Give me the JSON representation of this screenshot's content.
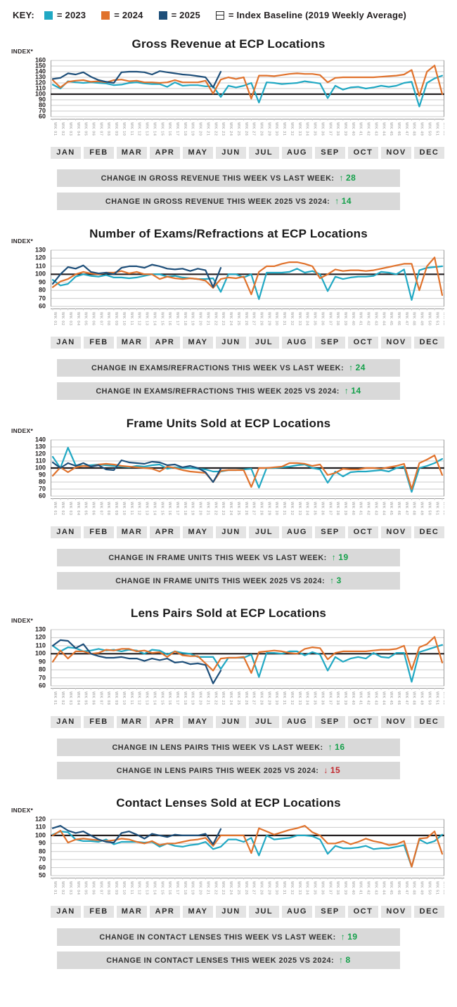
{
  "key": {
    "label": "KEY:",
    "items": [
      {
        "label": "= 2023",
        "color": "#20a8c3",
        "swatch": "square"
      },
      {
        "label": "= 2024",
        "color": "#e0722c",
        "swatch": "square"
      },
      {
        "label": "= 2025",
        "color": "#1d4e79",
        "swatch": "square"
      },
      {
        "label": "= Index Baseline (2019 Weekly Average)",
        "color": "#ffffff",
        "swatch": "baseline-box"
      }
    ]
  },
  "index_axis_label": "INDEX*",
  "months": [
    "JAN",
    "FEB",
    "MAR",
    "APR",
    "MAY",
    "JUN",
    "JUL",
    "AUG",
    "SEP",
    "OCT",
    "NOV",
    "DEC"
  ],
  "weeks": [
    "WK 01",
    "WK 02",
    "WK 03",
    "WK 04",
    "WK 05",
    "WK 06",
    "WK 07",
    "WK 08",
    "WK 09",
    "WK 10",
    "WK 11",
    "WK 12",
    "WK 13",
    "WK 14",
    "WK 15",
    "WK 16",
    "WK 17",
    "WK 18",
    "WK 19",
    "WK 20",
    "WK 21",
    "WK 22",
    "WK 23",
    "WK 24",
    "WK 25",
    "WK 26",
    "WK 27",
    "WK 28",
    "WK 29",
    "WK 30",
    "WK 31",
    "WK 32",
    "WK 33",
    "WK 34",
    "WK 35",
    "WK 36",
    "WK 37",
    "WK 38",
    "WK 39",
    "WK 40",
    "WK 41",
    "WK 42",
    "WK 43",
    "WK 44",
    "WK 45",
    "WK 46",
    "WK 47",
    "WK 48",
    "WK 49",
    "WK 50",
    "WK 51",
    "WK 52"
  ],
  "colors": {
    "grid": "#cbcbcb",
    "axis": "#9a9a9a",
    "baseline": "#231f20",
    "week_label": "#b3b3b3",
    "up": "#14a04a",
    "down": "#c1272d"
  },
  "chart_data": [
    {
      "type": "line",
      "title": "Gross Revenue at ECP Locations",
      "ylabel": "INDEX*",
      "ylim": [
        60,
        160
      ],
      "ytick_step": 10,
      "baseline": 100,
      "x_weeks": 52,
      "legend_position": "top",
      "grid": true,
      "series": [
        {
          "name": "2023",
          "color": "#20a8c3",
          "values": [
            117,
            110,
            123,
            121,
            120,
            121,
            120,
            119,
            116,
            117,
            120,
            121,
            119,
            118,
            118,
            113,
            121,
            115,
            116,
            116,
            114,
            114,
            95,
            115,
            112,
            115,
            120,
            85,
            121,
            120,
            118,
            119,
            120,
            123,
            121,
            119,
            93,
            115,
            108,
            112,
            113,
            110,
            112,
            115,
            113,
            115,
            120,
            122,
            78,
            120,
            128,
            133
          ]
        },
        {
          "name": "2024",
          "color": "#e0722c",
          "values": [
            125,
            112,
            122,
            124,
            125,
            122,
            123,
            121,
            125,
            126,
            123,
            124,
            121,
            121,
            120,
            121,
            125,
            121,
            121,
            121,
            124,
            101,
            126,
            130,
            127,
            130,
            92,
            133,
            133,
            132,
            134,
            136,
            137,
            136,
            136,
            134,
            121,
            129,
            130,
            130,
            130,
            130,
            130,
            131,
            132,
            133,
            135,
            143,
            97,
            140,
            151,
            100
          ]
        },
        {
          "name": "2025",
          "color": "#1d4e79",
          "values": [
            127,
            129,
            137,
            135,
            139,
            131,
            125,
            122,
            120,
            139,
            140,
            140,
            139,
            135,
            141,
            139,
            137,
            135,
            134,
            132,
            130,
            112,
            140
          ]
        }
      ],
      "stats": [
        {
          "label": "CHANGE IN GROSS REVENUE THIS WEEK VS LAST WEEK:",
          "direction": "up",
          "value": "28"
        },
        {
          "label": "CHANGE IN GROSS REVENUE THIS WEEK 2025 VS 2024:",
          "direction": "up",
          "value": "14"
        }
      ]
    },
    {
      "type": "line",
      "title": "Number of Exams/Refractions at ECP Locations",
      "ylabel": "INDEX*",
      "ylim": [
        60,
        130
      ],
      "ytick_step": 10,
      "baseline": 100,
      "x_weeks": 52,
      "legend_position": "top",
      "grid": true,
      "series": [
        {
          "name": "2023",
          "color": "#20a8c3",
          "values": [
            93,
            86,
            88,
            97,
            100,
            98,
            97,
            99,
            96,
            96,
            95,
            96,
            98,
            100,
            100,
            97,
            98,
            96,
            95,
            94,
            94,
            95,
            78,
            100,
            100,
            96,
            100,
            69,
            102,
            102,
            102,
            103,
            107,
            102,
            104,
            100,
            79,
            97,
            94,
            96,
            97,
            97,
            98,
            103,
            102,
            100,
            106,
            68,
            105,
            108,
            109,
            110
          ]
        },
        {
          "name": "2024",
          "color": "#e0722c",
          "values": [
            84,
            91,
            94,
            100,
            103,
            101,
            100,
            102,
            102,
            104,
            101,
            103,
            100,
            100,
            94,
            97,
            95,
            94,
            95,
            94,
            92,
            83,
            94,
            96,
            95,
            97,
            75,
            103,
            110,
            110,
            113,
            115,
            115,
            113,
            110,
            95,
            100,
            106,
            104,
            105,
            105,
            104,
            105,
            107,
            109,
            111,
            113,
            113,
            80,
            110,
            121,
            74
          ]
        },
        {
          "name": "2025",
          "color": "#1d4e79",
          "values": [
            88,
            100,
            109,
            107,
            111,
            103,
            101,
            102,
            100,
            108,
            110,
            110,
            108,
            112,
            110,
            107,
            106,
            107,
            104,
            107,
            105,
            84,
            108
          ]
        }
      ],
      "stats": [
        {
          "label": "CHANGE IN EXAMS/REFRACTIONS THIS WEEK VS LAST WEEK:",
          "direction": "up",
          "value": "24"
        },
        {
          "label": "CHANGE IN EXAMS/REFRACTIONS THIS WEEK 2025 VS 2024:",
          "direction": "up",
          "value": "14"
        }
      ]
    },
    {
      "type": "line",
      "title": "Frame Units Sold at ECP Locations",
      "ylabel": "INDEX*",
      "ylim": [
        60,
        140
      ],
      "ytick_step": 10,
      "baseline": 100,
      "x_weeks": 52,
      "legend_position": "top",
      "grid": true,
      "series": [
        {
          "name": "2023",
          "color": "#20a8c3",
          "values": [
            116,
            100,
            129,
            104,
            103,
            104,
            105,
            104,
            103,
            102,
            101,
            103,
            102,
            104,
            105,
            99,
            101,
            100,
            100,
            99,
            98,
            95,
            95,
            97,
            97,
            98,
            99,
            72,
            100,
            100,
            101,
            102,
            104,
            105,
            100,
            98,
            79,
            95,
            88,
            94,
            95,
            95,
            96,
            97,
            95,
            100,
            102,
            66,
            100,
            103,
            107,
            113
          ]
        },
        {
          "name": "2024",
          "color": "#e0722c",
          "values": [
            89,
            101,
            94,
            101,
            103,
            102,
            105,
            106,
            105,
            103,
            102,
            101,
            100,
            99,
            95,
            102,
            100,
            97,
            95,
            94,
            93,
            80,
            96,
            97,
            97,
            97,
            73,
            100,
            100,
            101,
            102,
            107,
            107,
            106,
            103,
            105,
            90,
            93,
            99,
            98,
            98,
            100,
            100,
            99,
            101,
            103,
            106,
            70,
            107,
            112,
            118,
            90
          ]
        },
        {
          "name": "2025",
          "color": "#1d4e79",
          "values": [
            108,
            100,
            107,
            103,
            107,
            102,
            104,
            98,
            97,
            111,
            108,
            107,
            106,
            109,
            108,
            104,
            105,
            101,
            103,
            100,
            94,
            80,
            99
          ]
        }
      ],
      "stats": [
        {
          "label": "CHANGE IN FRAME UNITS THIS WEEK VS LAST WEEK:",
          "direction": "up",
          "value": "19"
        },
        {
          "label": "CHANGE IN FRAME UNITS THIS WEEK 2025 VS 2024:",
          "direction": "up",
          "value": "3"
        }
      ]
    },
    {
      "type": "line",
      "title": "Lens Pairs Sold at ECP Locations",
      "ylabel": "INDEX*",
      "ylim": [
        60,
        130
      ],
      "ytick_step": 10,
      "baseline": 100,
      "x_weeks": 52,
      "legend_position": "top",
      "grid": true,
      "series": [
        {
          "name": "2023",
          "color": "#20a8c3",
          "values": [
            110,
            103,
            108,
            107,
            103,
            104,
            106,
            104,
            105,
            103,
            105,
            104,
            100,
            105,
            104,
            99,
            103,
            101,
            100,
            96,
            96,
            96,
            81,
            95,
            95,
            95,
            99,
            71,
            101,
            101,
            100,
            103,
            103,
            98,
            102,
            99,
            79,
            96,
            90,
            94,
            96,
            94,
            101,
            96,
            95,
            101,
            101,
            65,
            102,
            105,
            108,
            111
          ]
        },
        {
          "name": "2024",
          "color": "#e0722c",
          "values": [
            90,
            104,
            94,
            103,
            103,
            100,
            101,
            105,
            104,
            106,
            106,
            103,
            104,
            101,
            102,
            96,
            103,
            98,
            97,
            97,
            88,
            79,
            94,
            95,
            95,
            96,
            76,
            102,
            103,
            104,
            103,
            101,
            100,
            106,
            108,
            107,
            93,
            101,
            103,
            103,
            103,
            103,
            104,
            105,
            105,
            106,
            110,
            80,
            108,
            112,
            121,
            89
          ]
        },
        {
          "name": "2025",
          "color": "#1d4e79",
          "values": [
            110,
            117,
            116,
            107,
            112,
            100,
            97,
            95,
            95,
            96,
            94,
            94,
            91,
            94,
            92,
            94,
            89,
            90,
            87,
            88,
            86,
            63,
            79
          ]
        }
      ],
      "stats": [
        {
          "label": "CHANGE IN LENS PAIRS THIS WEEK VS LAST WEEK:",
          "direction": "up",
          "value": "16"
        },
        {
          "label": "CHANGE IN LENS PAIRS THIS WEEK 2025 VS 2024:",
          "direction": "down",
          "value": "15"
        }
      ]
    },
    {
      "type": "line",
      "title": "Contact Lenses Sold at ECP Locations",
      "ylabel": "INDEX*",
      "ylim": [
        50,
        120
      ],
      "ytick_step": 10,
      "baseline": 100,
      "x_weeks": 52,
      "legend_position": "top",
      "grid": true,
      "series": [
        {
          "name": "2023",
          "color": "#20a8c3",
          "values": [
            101,
            105,
            104,
            95,
            93,
            93,
            92,
            95,
            89,
            92,
            92,
            92,
            91,
            92,
            86,
            90,
            87,
            86,
            88,
            89,
            92,
            83,
            86,
            95,
            95,
            92,
            97,
            75,
            100,
            95,
            96,
            97,
            100,
            100,
            99,
            95,
            77,
            87,
            84,
            84,
            85,
            87,
            83,
            84,
            84,
            86,
            88,
            61,
            95,
            90,
            93,
            101
          ]
        },
        {
          "name": "2024",
          "color": "#e0722c",
          "values": [
            100,
            106,
            91,
            95,
            96,
            95,
            94,
            93,
            94,
            96,
            95,
            92,
            90,
            93,
            88,
            90,
            90,
            92,
            94,
            95,
            97,
            87,
            100,
            100,
            100,
            100,
            78,
            109,
            105,
            101,
            104,
            107,
            109,
            112,
            104,
            100,
            90,
            90,
            93,
            89,
            92,
            96,
            93,
            91,
            88,
            89,
            93,
            61,
            96,
            97,
            105,
            77
          ]
        },
        {
          "name": "2025",
          "color": "#1d4e79",
          "values": [
            109,
            112,
            106,
            103,
            105,
            100,
            95,
            92,
            91,
            103,
            105,
            101,
            96,
            102,
            100,
            98,
            101,
            100,
            100,
            100,
            102,
            89,
            108
          ]
        }
      ],
      "stats": [
        {
          "label": "CHANGE IN CONTACT LENSES THIS WEEK VS LAST WEEK:",
          "direction": "up",
          "value": "19"
        },
        {
          "label": "CHANGE IN CONTACT LENSES THIS WEEK 2025 VS 2024:",
          "direction": "up",
          "value": "8"
        }
      ]
    }
  ]
}
